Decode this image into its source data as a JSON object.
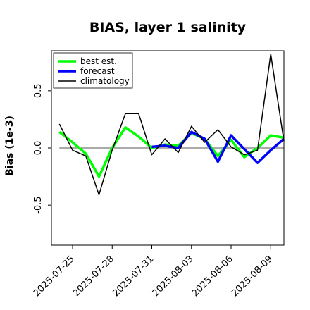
{
  "chart_data": {
    "type": "line",
    "title": "BIAS, layer 1 salinity",
    "xlabel": "",
    "ylabel": "Bias (1e-3)",
    "xlim": [
      0,
      17.6
    ],
    "ylim": [
      -0.85,
      0.85
    ],
    "xticks": [
      {
        "x": 1.6,
        "label": "2025-07-25",
        "color": "#000000"
      },
      {
        "x": 4.6,
        "label": "2025-07-28",
        "color": "#000000"
      },
      {
        "x": 7.6,
        "label": "2025-07-31",
        "color": "#228b22"
      },
      {
        "x": 10.6,
        "label": "2025-08-03",
        "color": "#000000"
      },
      {
        "x": 13.6,
        "label": "2025-08-06",
        "color": "#000000"
      },
      {
        "x": 16.6,
        "label": "2025-08-09",
        "color": "#000000"
      }
    ],
    "yticks": [
      {
        "y": -0.5,
        "label": "-0.5"
      },
      {
        "y": 0.0,
        "label": "0.0"
      },
      {
        "y": 0.5,
        "label": "0.5"
      }
    ],
    "zero_line": true,
    "grid": false,
    "legend_position": "top-left",
    "series": [
      {
        "name": "best est.",
        "color": "#00ff00",
        "x": [
          0,
          1,
          2,
          3,
          4,
          5,
          6,
          7,
          8,
          9,
          10,
          11,
          12,
          13,
          14,
          15,
          16,
          17
        ],
        "y": [
          0.14,
          0.05,
          -0.05,
          -0.25,
          0.0,
          0.18,
          0.1,
          0.0,
          0.03,
          0.02,
          0.13,
          0.08,
          -0.07,
          0.07,
          -0.08,
          0.0,
          0.11,
          0.09
        ]
      },
      {
        "name": "forecast",
        "color": "#0000ff",
        "x": [
          7,
          8,
          9,
          10,
          11,
          12,
          13,
          14,
          15,
          16,
          17
        ],
        "y": [
          0.01,
          0.02,
          0.0,
          0.14,
          0.08,
          -0.12,
          0.11,
          -0.01,
          -0.13,
          -0.02,
          0.08
        ]
      },
      {
        "name": "climatology",
        "color": "#000000",
        "x": [
          0,
          1,
          2,
          3,
          4,
          5,
          6,
          7,
          8,
          9,
          10,
          11,
          12,
          13,
          14,
          15,
          16,
          17
        ],
        "y": [
          0.21,
          -0.02,
          -0.07,
          -0.41,
          -0.02,
          0.3,
          0.3,
          -0.06,
          0.08,
          -0.04,
          0.19,
          0.05,
          0.16,
          0.01,
          -0.06,
          -0.02,
          0.82,
          0.06
        ]
      }
    ]
  }
}
